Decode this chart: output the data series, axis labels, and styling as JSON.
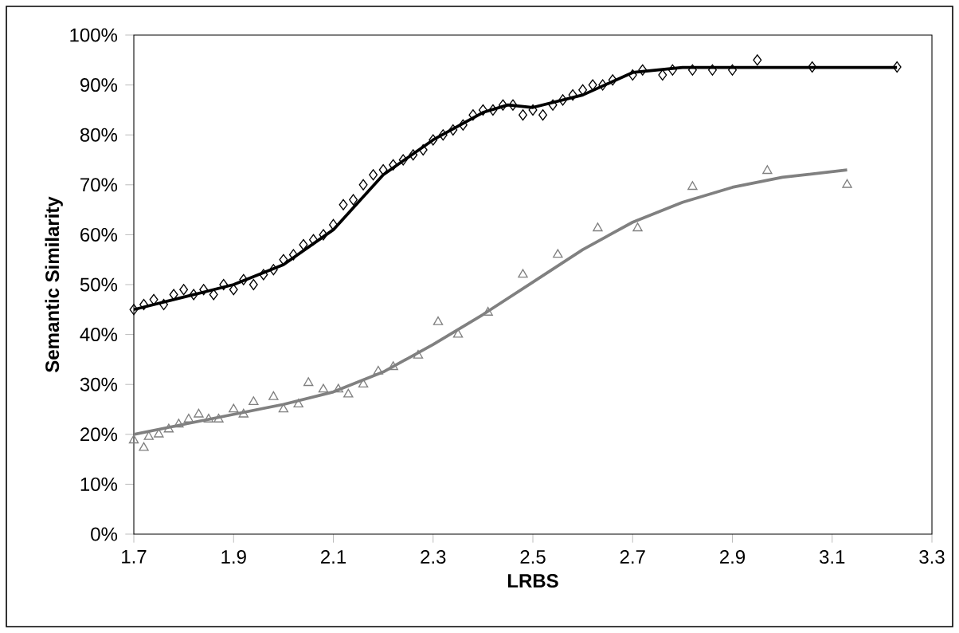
{
  "chart_data": {
    "type": "scatter",
    "xlabel": "LRBS",
    "ylabel": "Semantic Similarity",
    "xlim": [
      1.7,
      3.3
    ],
    "xticks": [
      1.7,
      1.9,
      2.1,
      2.3,
      2.5,
      2.7,
      2.9,
      3.1,
      3.3
    ],
    "ylim": [
      0,
      100
    ],
    "yticks": [
      {
        "value": 0,
        "label": "0%"
      },
      {
        "value": 10,
        "label": "10%"
      },
      {
        "value": 20,
        "label": "20%"
      },
      {
        "value": 30,
        "label": "30%"
      },
      {
        "value": 40,
        "label": "40%"
      },
      {
        "value": 50,
        "label": "50%"
      },
      {
        "value": 60,
        "label": "60%"
      },
      {
        "value": 70,
        "label": "70%"
      },
      {
        "value": 80,
        "label": "80%"
      },
      {
        "value": 90,
        "label": "90%"
      },
      {
        "value": 100,
        "label": "100%"
      }
    ],
    "series": [
      {
        "type": "scatter",
        "marker": "diamond",
        "color": "#000000",
        "x": [
          1.7,
          1.72,
          1.74,
          1.76,
          1.78,
          1.8,
          1.82,
          1.84,
          1.86,
          1.88,
          1.9,
          1.92,
          1.94,
          1.96,
          1.98,
          2.0,
          2.02,
          2.04,
          2.06,
          2.08,
          2.1,
          2.12,
          2.14,
          2.16,
          2.18,
          2.2,
          2.22,
          2.24,
          2.26,
          2.28,
          2.3,
          2.32,
          2.34,
          2.36,
          2.38,
          2.4,
          2.42,
          2.44,
          2.46,
          2.48,
          2.5,
          2.52,
          2.54,
          2.56,
          2.58,
          2.6,
          2.62,
          2.64,
          2.66,
          2.7,
          2.72,
          2.76,
          2.78,
          2.82,
          2.86,
          2.9,
          2.95,
          3.06,
          3.23
        ],
        "values": [
          45,
          46,
          47,
          46,
          48,
          49,
          48,
          49,
          48,
          50,
          49,
          51,
          50,
          52,
          53,
          55,
          56,
          58,
          59,
          60,
          62,
          66,
          67,
          70,
          72,
          73,
          74,
          75,
          76,
          77,
          79,
          80,
          81,
          82,
          84,
          85,
          85,
          86,
          86,
          84,
          85,
          84,
          86,
          87,
          88,
          89,
          90,
          90,
          91,
          92,
          93,
          92,
          93,
          93,
          93,
          93,
          95,
          93.6,
          93.6
        ]
      },
      {
        "type": "line",
        "marker": "none",
        "color": "#000000",
        "x": [
          1.7,
          1.8,
          1.9,
          2.0,
          2.1,
          2.2,
          2.3,
          2.4,
          2.45,
          2.5,
          2.6,
          2.7,
          2.8,
          3.23
        ],
        "values": [
          45,
          47.5,
          50,
          54,
          61,
          72,
          79,
          84.5,
          86,
          85.5,
          88,
          92.5,
          93.5,
          93.5
        ]
      },
      {
        "type": "scatter",
        "marker": "triangle",
        "color": "#808080",
        "x": [
          1.7,
          1.72,
          1.73,
          1.75,
          1.77,
          1.79,
          1.81,
          1.83,
          1.85,
          1.87,
          1.9,
          1.92,
          1.94,
          1.98,
          2.0,
          2.03,
          2.05,
          2.08,
          2.11,
          2.13,
          2.16,
          2.19,
          2.22,
          2.27,
          2.31,
          2.35,
          2.41,
          2.48,
          2.55,
          2.63,
          2.71,
          2.82,
          2.97,
          3.13
        ],
        "values": [
          18.8,
          17.3,
          19.5,
          20,
          21,
          22,
          23,
          24,
          23,
          23,
          25,
          24,
          26.5,
          27.5,
          25,
          26,
          30.3,
          29,
          29,
          28,
          30,
          32.6,
          33.5,
          35.8,
          42.5,
          40,
          44.4,
          52,
          56,
          61.3,
          61.3,
          69.6,
          72.8,
          70
        ]
      },
      {
        "type": "line",
        "marker": "none",
        "color": "#808080",
        "x": [
          1.7,
          1.8,
          1.9,
          2.0,
          2.1,
          2.2,
          2.3,
          2.4,
          2.5,
          2.6,
          2.7,
          2.8,
          2.9,
          3.0,
          3.13
        ],
        "values": [
          20,
          22,
          24,
          26,
          28.5,
          32.5,
          38,
          44,
          50.5,
          57,
          62.5,
          66.5,
          69.5,
          71.5,
          73
        ]
      }
    ]
  }
}
